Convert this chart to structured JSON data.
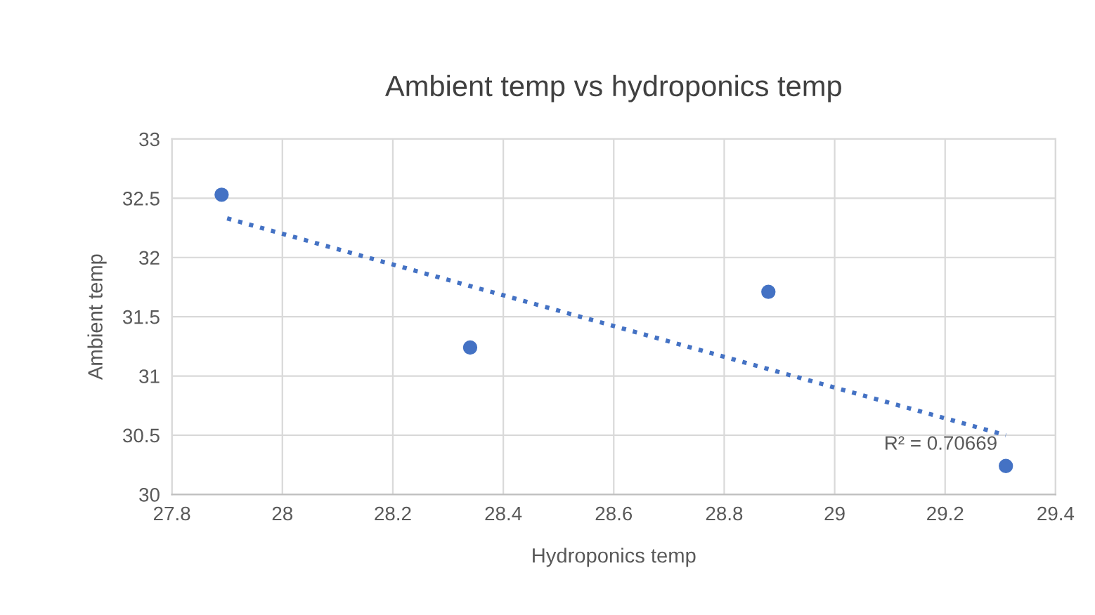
{
  "chart_data": {
    "type": "scatter",
    "title": "Ambient temp vs hydroponics temp",
    "xlabel": "Hydroponics temp",
    "ylabel": "Ambient temp",
    "series": [
      {
        "color": "#4472c4",
        "marker": "circle",
        "x": [
          27.89,
          28.34,
          28.88,
          29.31
        ],
        "values": [
          32.53,
          31.24,
          31.71,
          30.24
        ]
      },
      {
        "type": "line",
        "color": "#4472c4",
        "marker": "none",
        "line_style": "dotted",
        "x": [
          27.9,
          29.31
        ],
        "values": [
          32.33,
          30.5
        ]
      }
    ],
    "annotations": [
      "R² = 0.70669"
    ],
    "xlim": [
      27.8,
      29.4
    ],
    "xticks": [
      27.8,
      28,
      28.2,
      28.4,
      28.6,
      28.8,
      29,
      29.2,
      29.4
    ],
    "ylim": [
      30,
      33
    ],
    "yticks": [
      30,
      30.5,
      31,
      31.5,
      32,
      32.5,
      33
    ],
    "grid": true
  }
}
